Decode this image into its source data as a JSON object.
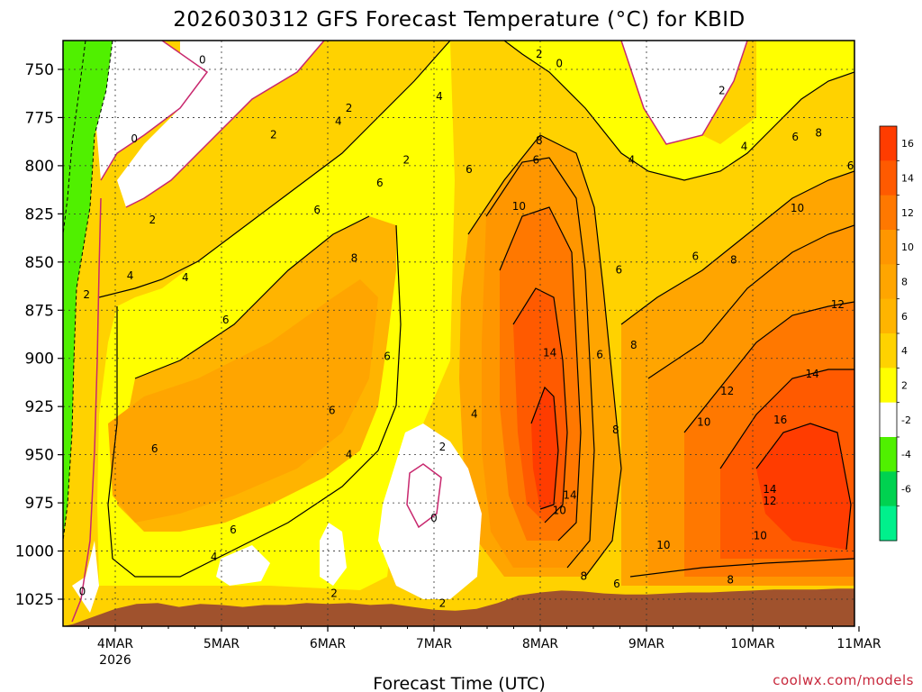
{
  "chart_data": {
    "type": "heatmap",
    "title": "2026030312 GFS Forecast Temperature (°C) for KBID",
    "xlabel": "Forecast Time (UTC)",
    "ylabel": "",
    "credit": "coolwx.com/models",
    "x_ticks": [
      "4MAR",
      "5MAR",
      "6MAR",
      "7MAR",
      "8MAR",
      "9MAR",
      "10MAR",
      "11MAR"
    ],
    "x_year": "2026",
    "y_ticks": [
      "750",
      "775",
      "800",
      "825",
      "850",
      "875",
      "900",
      "925",
      "950",
      "975",
      "1000",
      "1025"
    ],
    "y_values": [
      750,
      775,
      800,
      825,
      850,
      875,
      900,
      925,
      950,
      975,
      1000,
      1025
    ],
    "x_range_days": [
      -0.4,
      7.0
    ],
    "ylim_hpa": [
      736,
      1038
    ],
    "colorbar": {
      "levels": [
        16,
        14,
        12,
        10,
        8,
        6,
        4,
        2,
        -2,
        -4,
        -6
      ],
      "labels": [
        "16",
        "14",
        "12",
        "10",
        "8",
        "6",
        "4",
        "2",
        "-2",
        "-4",
        "-6"
      ],
      "colors": [
        "#ff3c00",
        "#ff5a00",
        "#ff7800",
        "#ff9600",
        "#ffa500",
        "#ffb400",
        "#ffd200",
        "#ffff00",
        "#ffffff",
        "#50f000",
        "#00d250",
        "#00f08c"
      ]
    },
    "terrain_hpa": [
      [
        -0.4,
        1038
      ],
      [
        -0.2,
        1034
      ],
      [
        0.0,
        1030
      ],
      [
        0.2,
        1027.5
      ],
      [
        0.4,
        1027
      ],
      [
        0.6,
        1029
      ],
      [
        0.8,
        1027.5
      ],
      [
        1.0,
        1028
      ],
      [
        1.2,
        1029
      ],
      [
        1.4,
        1028
      ],
      [
        1.6,
        1028
      ],
      [
        1.8,
        1027
      ],
      [
        2.0,
        1027.5
      ],
      [
        2.2,
        1027
      ],
      [
        2.4,
        1028
      ],
      [
        2.6,
        1027.5
      ],
      [
        2.8,
        1029
      ],
      [
        3.0,
        1030.5
      ],
      [
        3.2,
        1031
      ],
      [
        3.4,
        1030
      ],
      [
        3.6,
        1027
      ],
      [
        3.8,
        1023
      ],
      [
        4.0,
        1021.5
      ],
      [
        4.2,
        1020.5
      ],
      [
        4.4,
        1021
      ],
      [
        4.6,
        1022
      ],
      [
        4.8,
        1022.5
      ],
      [
        5.0,
        1022.5
      ],
      [
        5.2,
        1022
      ],
      [
        5.4,
        1021.5
      ],
      [
        5.6,
        1021.5
      ],
      [
        5.8,
        1021
      ],
      [
        6.0,
        1020.5
      ],
      [
        6.2,
        1020
      ],
      [
        6.4,
        1020
      ],
      [
        6.6,
        1020
      ],
      [
        6.8,
        1019.5
      ],
      [
        7.0,
        1019.5
      ]
    ],
    "contour_labels": [
      {
        "v": "0",
        "x": 0.82,
        "p": 745
      },
      {
        "v": "0",
        "x": 0.18,
        "p": 786
      },
      {
        "v": "0",
        "x": 4.18,
        "p": 747
      },
      {
        "v": "0",
        "x": 3.0,
        "p": 983
      },
      {
        "v": "0",
        "x": -0.31,
        "p": 1021
      },
      {
        "v": "2",
        "x": 2.2,
        "p": 770
      },
      {
        "v": "2",
        "x": 1.49,
        "p": 784
      },
      {
        "v": "2",
        "x": 0.35,
        "p": 828
      },
      {
        "v": "2",
        "x": -0.27,
        "p": 867
      },
      {
        "v": "2",
        "x": 2.74,
        "p": 797
      },
      {
        "v": "2",
        "x": 3.08,
        "p": 946
      },
      {
        "v": "2",
        "x": 3.08,
        "p": 1027
      },
      {
        "v": "2",
        "x": 2.06,
        "p": 1022
      },
      {
        "v": "2",
        "x": 3.99,
        "p": 742
      },
      {
        "v": "2",
        "x": 5.71,
        "p": 761
      },
      {
        "v": "4",
        "x": 2.1,
        "p": 777
      },
      {
        "v": "4",
        "x": 3.05,
        "p": 764
      },
      {
        "v": "4",
        "x": 0.14,
        "p": 857
      },
      {
        "v": "4",
        "x": 0.66,
        "p": 858
      },
      {
        "v": "4",
        "x": 3.38,
        "p": 929
      },
      {
        "v": "4",
        "x": 2.2,
        "p": 950
      },
      {
        "v": "4",
        "x": 0.93,
        "p": 1003
      },
      {
        "v": "4",
        "x": 4.86,
        "p": 797
      },
      {
        "v": "4",
        "x": 5.92,
        "p": 790
      },
      {
        "v": "6",
        "x": 2.49,
        "p": 809
      },
      {
        "v": "6",
        "x": 1.9,
        "p": 823
      },
      {
        "v": "6",
        "x": 3.33,
        "p": 802
      },
      {
        "v": "6",
        "x": 3.96,
        "p": 797
      },
      {
        "v": "6",
        "x": 1.04,
        "p": 880
      },
      {
        "v": "6",
        "x": 2.56,
        "p": 899
      },
      {
        "v": "6",
        "x": 2.04,
        "p": 927
      },
      {
        "v": "6",
        "x": 0.37,
        "p": 947
      },
      {
        "v": "6",
        "x": 1.11,
        "p": 989
      },
      {
        "v": "6",
        "x": 4.74,
        "p": 854
      },
      {
        "v": "6",
        "x": 4.56,
        "p": 898
      },
      {
        "v": "6",
        "x": 5.46,
        "p": 847
      },
      {
        "v": "6",
        "x": 6.4,
        "p": 785
      },
      {
        "v": "6",
        "x": 6.92,
        "p": 800
      },
      {
        "v": "6",
        "x": 4.72,
        "p": 1017
      },
      {
        "v": "8",
        "x": 2.25,
        "p": 848
      },
      {
        "v": "8",
        "x": 3.99,
        "p": 787
      },
      {
        "v": "8",
        "x": 4.88,
        "p": 893
      },
      {
        "v": "8",
        "x": 4.71,
        "p": 937
      },
      {
        "v": "8",
        "x": 5.82,
        "p": 849
      },
      {
        "v": "8",
        "x": 6.62,
        "p": 783
      },
      {
        "v": "8",
        "x": 4.41,
        "p": 1013
      },
      {
        "v": "8",
        "x": 5.79,
        "p": 1015
      },
      {
        "v": "10",
        "x": 3.8,
        "p": 821
      },
      {
        "v": "10",
        "x": 4.18,
        "p": 979
      },
      {
        "v": "10",
        "x": 5.54,
        "p": 933
      },
      {
        "v": "10",
        "x": 6.42,
        "p": 822
      },
      {
        "v": "10",
        "x": 5.16,
        "p": 997
      },
      {
        "v": "10",
        "x": 6.07,
        "p": 992
      },
      {
        "v": "12",
        "x": 5.76,
        "p": 917
      },
      {
        "v": "12",
        "x": 6.8,
        "p": 872
      },
      {
        "v": "12",
        "x": 6.16,
        "p": 974
      },
      {
        "v": "14",
        "x": 4.09,
        "p": 897
      },
      {
        "v": "14",
        "x": 4.28,
        "p": 971
      },
      {
        "v": "14",
        "x": 6.56,
        "p": 908
      },
      {
        "v": "14",
        "x": 6.16,
        "p": 968
      },
      {
        "v": "16",
        "x": 6.26,
        "p": 932
      }
    ]
  }
}
